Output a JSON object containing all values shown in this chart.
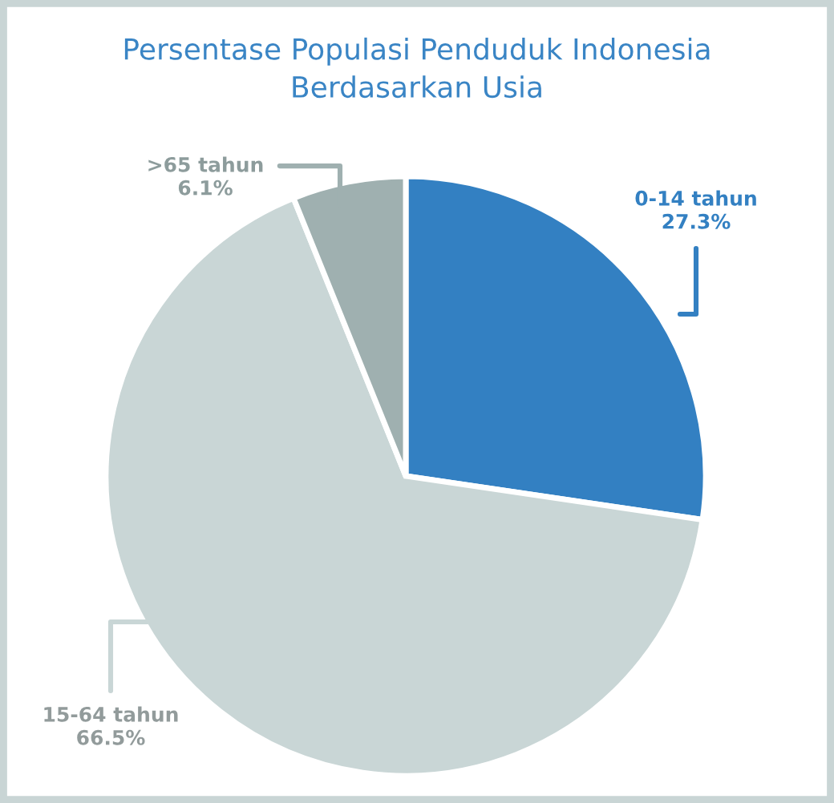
{
  "chart_data": {
    "type": "pie",
    "title": "Persentase Populasi Penduduk Indonesia\nBerdasarkan Usia",
    "categories": [
      "0-14 tahun",
      "15-64 tahun",
      ">65 tahun"
    ],
    "values": [
      27.3,
      66.5,
      6.1
    ],
    "value_labels": [
      "27.3%",
      "66.5%",
      "6.1%"
    ],
    "colors": [
      "#3380c2",
      "#c9d6d6",
      "#9fb0b0"
    ]
  }
}
